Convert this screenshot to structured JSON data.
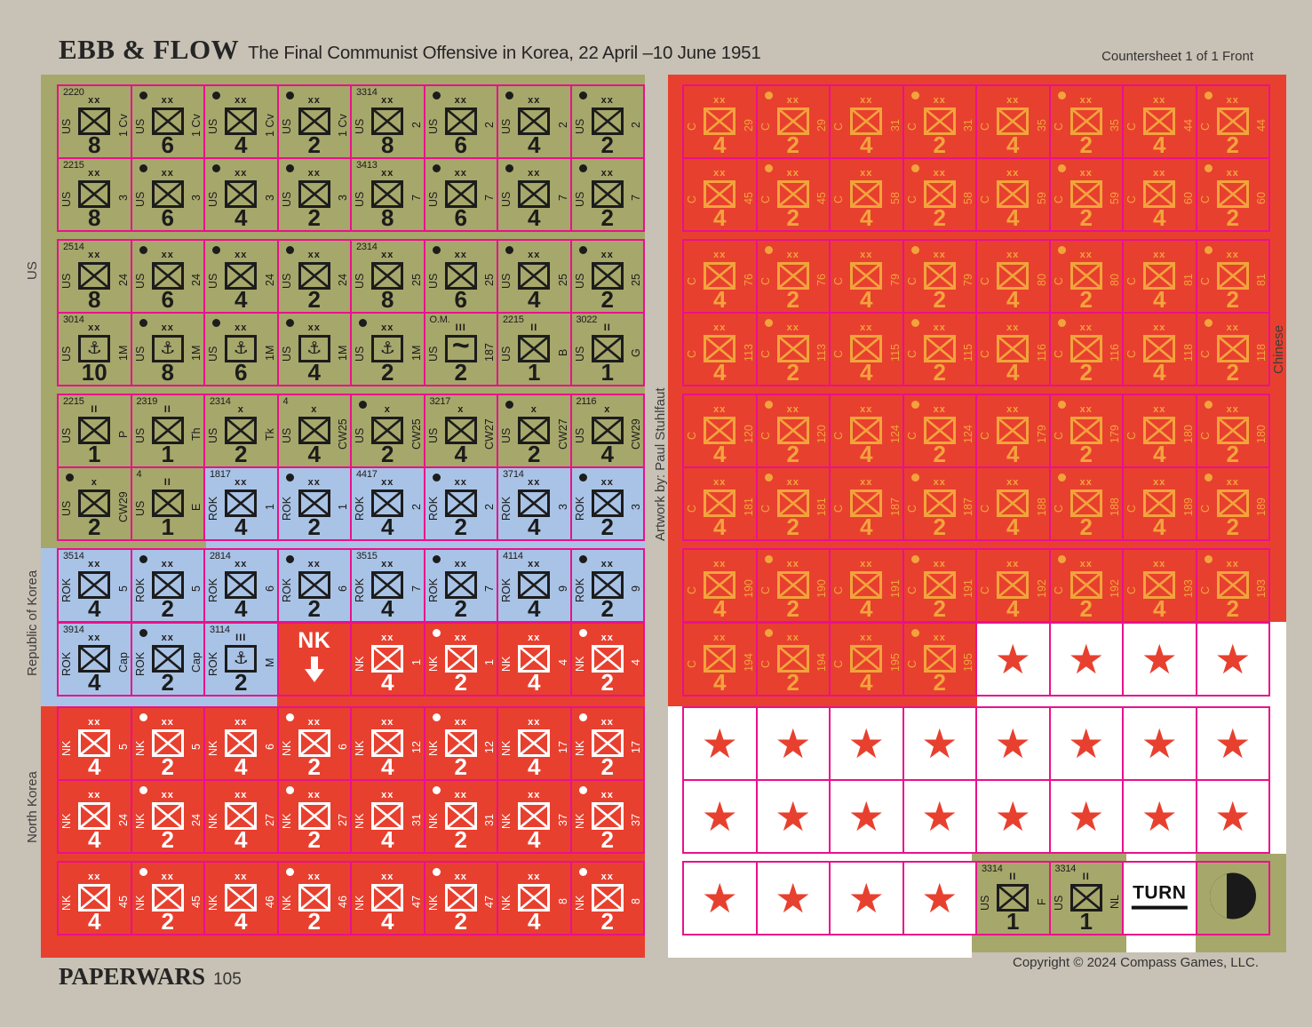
{
  "header": {
    "title": "EBB & FLOW",
    "subtitle": "The Final Communist Offensive in Korea, 22 April –10 June 1951",
    "sheet_label": "Countersheet 1 of 1 Front"
  },
  "footer": {
    "magazine": "PAPERWARS",
    "issue": "105",
    "copyright": "Copyright © 2024 Compass Games, LLC."
  },
  "side_labels": {
    "left_top": "US",
    "left_mid": "Republic of Korea",
    "left_bottom": "North Korea",
    "center": "Artwork by: Paul Stuhlfaut",
    "right": "Chinese"
  },
  "colors": {
    "page_bg": "#c8c1b5",
    "olive": "#a6a76b",
    "blue": "#a9c3e6",
    "red": "#e8402f",
    "white": "#ffffff",
    "magenta_border": "#e9118c",
    "orange_ink": "#f2a43c",
    "dark_ink": "#1c1c1c"
  },
  "army_labels": {
    "us": "US",
    "rok": "ROK",
    "nk": "NK",
    "cn": "C"
  },
  "defaults": {
    "size_symbol": "xx",
    "unit_symbol": "inf"
  },
  "icons": {
    "anchor": "⚓",
    "airborne": "~",
    "star": "★",
    "nk_arrow_label": "NK"
  },
  "panels": {
    "left": {
      "rows": [
        [
          {
            "k": "us",
            "id": "2220",
            "s": "8",
            "d": "1 Cv"
          },
          {
            "k": "us",
            "dot": 1,
            "s": "6",
            "d": "1 Cv"
          },
          {
            "k": "us",
            "dot": 1,
            "s": "4",
            "d": "1 Cv"
          },
          {
            "k": "us",
            "dot": 1,
            "s": "2",
            "d": "1 Cv"
          },
          {
            "k": "us",
            "id": "3314",
            "s": "8",
            "d": "2"
          },
          {
            "k": "us",
            "dot": 1,
            "s": "6",
            "d": "2"
          },
          {
            "k": "us",
            "dot": 1,
            "s": "4",
            "d": "2"
          },
          {
            "k": "us",
            "dot": 1,
            "s": "2",
            "d": "2"
          }
        ],
        [
          {
            "k": "us",
            "id": "2215",
            "s": "8",
            "d": "3"
          },
          {
            "k": "us",
            "dot": 1,
            "s": "6",
            "d": "3"
          },
          {
            "k": "us",
            "dot": 1,
            "s": "4",
            "d": "3"
          },
          {
            "k": "us",
            "dot": 1,
            "s": "2",
            "d": "3"
          },
          {
            "k": "us",
            "id": "3413",
            "s": "8",
            "d": "7"
          },
          {
            "k": "us",
            "dot": 1,
            "s": "6",
            "d": "7"
          },
          {
            "k": "us",
            "dot": 1,
            "s": "4",
            "d": "7"
          },
          {
            "k": "us",
            "dot": 1,
            "s": "2",
            "d": "7"
          }
        ],
        [
          {
            "k": "us",
            "id": "2514",
            "s": "8",
            "d": "24"
          },
          {
            "k": "us",
            "dot": 1,
            "s": "6",
            "d": "24"
          },
          {
            "k": "us",
            "dot": 1,
            "s": "4",
            "d": "24"
          },
          {
            "k": "us",
            "dot": 1,
            "s": "2",
            "d": "24"
          },
          {
            "k": "us",
            "id": "2314",
            "s": "8",
            "d": "25"
          },
          {
            "k": "us",
            "dot": 1,
            "s": "6",
            "d": "25"
          },
          {
            "k": "us",
            "dot": 1,
            "s": "4",
            "d": "25"
          },
          {
            "k": "us",
            "dot": 1,
            "s": "2",
            "d": "25"
          }
        ],
        [
          {
            "k": "us",
            "id": "3014",
            "sym": "anchor",
            "s": "10",
            "d": "1M"
          },
          {
            "k": "us",
            "dot": 1,
            "sym": "anchor",
            "s": "8",
            "d": "1M"
          },
          {
            "k": "us",
            "dot": 1,
            "sym": "anchor",
            "s": "6",
            "d": "1M"
          },
          {
            "k": "us",
            "dot": 1,
            "sym": "anchor",
            "s": "4",
            "d": "1M"
          },
          {
            "k": "us",
            "dot": 1,
            "sym": "anchor",
            "s": "2",
            "d": "1M"
          },
          {
            "k": "us",
            "id": "O.M.",
            "sz": "III",
            "sym": "abn",
            "s": "2",
            "d": "187"
          },
          {
            "k": "us",
            "id": "2215",
            "sz": "II",
            "s": "1",
            "d": "B"
          },
          {
            "k": "us",
            "id": "3022",
            "sz": "II",
            "s": "1",
            "d": "G"
          }
        ],
        [
          {
            "k": "us",
            "id": "2215",
            "sz": "II",
            "s": "1",
            "d": "P"
          },
          {
            "k": "us",
            "id": "2319",
            "sz": "II",
            "s": "1",
            "d": "Th"
          },
          {
            "k": "us",
            "id": "2314",
            "sz": "x",
            "s": "2",
            "d": "Tk"
          },
          {
            "k": "us",
            "id": "4",
            "sz": "x",
            "s": "4",
            "d": "CW25"
          },
          {
            "k": "us",
            "dot": 1,
            "sz": "x",
            "s": "2",
            "d": "CW25"
          },
          {
            "k": "us",
            "id": "3217",
            "sz": "x",
            "s": "4",
            "d": "CW27"
          },
          {
            "k": "us",
            "dot": 1,
            "sz": "x",
            "s": "2",
            "d": "CW27"
          },
          {
            "k": "us",
            "id": "2116",
            "sz": "x",
            "s": "4",
            "d": "CW29"
          }
        ],
        [
          {
            "k": "us",
            "dot": 1,
            "sz": "x",
            "s": "2",
            "d": "CW29"
          },
          {
            "k": "us",
            "id": "4",
            "sz": "II",
            "s": "1",
            "d": "E"
          },
          {
            "k": "rok",
            "id": "1817",
            "s": "4",
            "d": "1"
          },
          {
            "k": "rok",
            "dot": 1,
            "s": "2",
            "d": "1"
          },
          {
            "k": "rok",
            "id": "4417",
            "s": "4",
            "d": "2"
          },
          {
            "k": "rok",
            "dot": 1,
            "s": "2",
            "d": "2"
          },
          {
            "k": "rok",
            "id": "3714",
            "s": "4",
            "d": "3"
          },
          {
            "k": "rok",
            "dot": 1,
            "s": "2",
            "d": "3"
          }
        ],
        [
          {
            "k": "rok",
            "id": "3514",
            "s": "4",
            "d": "5"
          },
          {
            "k": "rok",
            "dot": 1,
            "s": "2",
            "d": "5"
          },
          {
            "k": "rok",
            "id": "2814",
            "s": "4",
            "d": "6"
          },
          {
            "k": "rok",
            "dot": 1,
            "s": "2",
            "d": "6"
          },
          {
            "k": "rok",
            "id": "3515",
            "s": "4",
            "d": "7"
          },
          {
            "k": "rok",
            "dot": 1,
            "s": "2",
            "d": "7"
          },
          {
            "k": "rok",
            "id": "4114",
            "s": "4",
            "d": "9"
          },
          {
            "k": "rok",
            "dot": 1,
            "s": "2",
            "d": "9"
          }
        ],
        [
          {
            "k": "rok",
            "id": "3914",
            "s": "4",
            "d": "Cap"
          },
          {
            "k": "rok",
            "dot": 1,
            "s": "2",
            "d": "Cap"
          },
          {
            "k": "rok",
            "id": "3114",
            "sz": "III",
            "sym": "anchor",
            "s": "2",
            "d": "M"
          },
          {
            "k": "nk-arrow"
          },
          {
            "k": "nk",
            "s": "4",
            "d": "1"
          },
          {
            "k": "nk",
            "dot": 1,
            "s": "2",
            "d": "1"
          },
          {
            "k": "nk",
            "s": "4",
            "d": "4"
          },
          {
            "k": "nk",
            "dot": 1,
            "s": "2",
            "d": "4"
          }
        ],
        [
          {
            "k": "nk",
            "s": "4",
            "d": "5"
          },
          {
            "k": "nk",
            "dot": 1,
            "s": "2",
            "d": "5"
          },
          {
            "k": "nk",
            "s": "4",
            "d": "6"
          },
          {
            "k": "nk",
            "dot": 1,
            "s": "2",
            "d": "6"
          },
          {
            "k": "nk",
            "s": "4",
            "d": "12"
          },
          {
            "k": "nk",
            "dot": 1,
            "s": "2",
            "d": "12"
          },
          {
            "k": "nk",
            "s": "4",
            "d": "17"
          },
          {
            "k": "nk",
            "dot": 1,
            "s": "2",
            "d": "17"
          }
        ],
        [
          {
            "k": "nk",
            "s": "4",
            "d": "24"
          },
          {
            "k": "nk",
            "dot": 1,
            "s": "2",
            "d": "24"
          },
          {
            "k": "nk",
            "s": "4",
            "d": "27"
          },
          {
            "k": "nk",
            "dot": 1,
            "s": "2",
            "d": "27"
          },
          {
            "k": "nk",
            "s": "4",
            "d": "31"
          },
          {
            "k": "nk",
            "dot": 1,
            "s": "2",
            "d": "31"
          },
          {
            "k": "nk",
            "s": "4",
            "d": "37"
          },
          {
            "k": "nk",
            "dot": 1,
            "s": "2",
            "d": "37"
          }
        ],
        [
          {
            "k": "nk",
            "s": "4",
            "d": "45"
          },
          {
            "k": "nk",
            "dot": 1,
            "s": "2",
            "d": "45"
          },
          {
            "k": "nk",
            "s": "4",
            "d": "46"
          },
          {
            "k": "nk",
            "dot": 1,
            "s": "2",
            "d": "46"
          },
          {
            "k": "nk",
            "s": "4",
            "d": "47"
          },
          {
            "k": "nk",
            "dot": 1,
            "s": "2",
            "d": "47"
          },
          {
            "k": "nk",
            "s": "4",
            "d": "8"
          },
          {
            "k": "nk",
            "dot": 1,
            "s": "2",
            "d": "8"
          }
        ]
      ]
    },
    "right": {
      "rows": [
        [
          {
            "k": "cn",
            "s": "4",
            "d": "29"
          },
          {
            "k": "cn",
            "dot": 1,
            "s": "2",
            "d": "29"
          },
          {
            "k": "cn",
            "s": "4",
            "d": "31"
          },
          {
            "k": "cn",
            "dot": 1,
            "s": "2",
            "d": "31"
          },
          {
            "k": "cn",
            "s": "4",
            "d": "35"
          },
          {
            "k": "cn",
            "dot": 1,
            "s": "2",
            "d": "35"
          },
          {
            "k": "cn",
            "s": "4",
            "d": "44"
          },
          {
            "k": "cn",
            "dot": 1,
            "s": "2",
            "d": "44"
          }
        ],
        [
          {
            "k": "cn",
            "s": "4",
            "d": "45"
          },
          {
            "k": "cn",
            "dot": 1,
            "s": "2",
            "d": "45"
          },
          {
            "k": "cn",
            "s": "4",
            "d": "58"
          },
          {
            "k": "cn",
            "dot": 1,
            "s": "2",
            "d": "58"
          },
          {
            "k": "cn",
            "s": "4",
            "d": "59"
          },
          {
            "k": "cn",
            "dot": 1,
            "s": "2",
            "d": "59"
          },
          {
            "k": "cn",
            "s": "4",
            "d": "60"
          },
          {
            "k": "cn",
            "dot": 1,
            "s": "2",
            "d": "60"
          }
        ],
        [
          {
            "k": "cn",
            "s": "4",
            "d": "76"
          },
          {
            "k": "cn",
            "dot": 1,
            "s": "2",
            "d": "76"
          },
          {
            "k": "cn",
            "s": "4",
            "d": "79"
          },
          {
            "k": "cn",
            "dot": 1,
            "s": "2",
            "d": "79"
          },
          {
            "k": "cn",
            "s": "4",
            "d": "80"
          },
          {
            "k": "cn",
            "dot": 1,
            "s": "2",
            "d": "80"
          },
          {
            "k": "cn",
            "s": "4",
            "d": "81"
          },
          {
            "k": "cn",
            "dot": 1,
            "s": "2",
            "d": "81"
          }
        ],
        [
          {
            "k": "cn",
            "s": "4",
            "d": "113"
          },
          {
            "k": "cn",
            "dot": 1,
            "s": "2",
            "d": "113"
          },
          {
            "k": "cn",
            "s": "4",
            "d": "115"
          },
          {
            "k": "cn",
            "dot": 1,
            "s": "2",
            "d": "115"
          },
          {
            "k": "cn",
            "s": "4",
            "d": "116"
          },
          {
            "k": "cn",
            "dot": 1,
            "s": "2",
            "d": "116"
          },
          {
            "k": "cn",
            "s": "4",
            "d": "118"
          },
          {
            "k": "cn",
            "dot": 1,
            "s": "2",
            "d": "118"
          }
        ],
        [
          {
            "k": "cn",
            "s": "4",
            "d": "120"
          },
          {
            "k": "cn",
            "dot": 1,
            "s": "2",
            "d": "120"
          },
          {
            "k": "cn",
            "s": "4",
            "d": "124"
          },
          {
            "k": "cn",
            "dot": 1,
            "s": "2",
            "d": "124"
          },
          {
            "k": "cn",
            "s": "4",
            "d": "179"
          },
          {
            "k": "cn",
            "dot": 1,
            "s": "2",
            "d": "179"
          },
          {
            "k": "cn",
            "s": "4",
            "d": "180"
          },
          {
            "k": "cn",
            "dot": 1,
            "s": "2",
            "d": "180"
          }
        ],
        [
          {
            "k": "cn",
            "s": "4",
            "d": "181"
          },
          {
            "k": "cn",
            "dot": 1,
            "s": "2",
            "d": "181"
          },
          {
            "k": "cn",
            "s": "4",
            "d": "187"
          },
          {
            "k": "cn",
            "dot": 1,
            "s": "2",
            "d": "187"
          },
          {
            "k": "cn",
            "s": "4",
            "d": "188"
          },
          {
            "k": "cn",
            "dot": 1,
            "s": "2",
            "d": "188"
          },
          {
            "k": "cn",
            "s": "4",
            "d": "189"
          },
          {
            "k": "cn",
            "dot": 1,
            "s": "2",
            "d": "189"
          }
        ],
        [
          {
            "k": "cn",
            "s": "4",
            "d": "190"
          },
          {
            "k": "cn",
            "dot": 1,
            "s": "2",
            "d": "190"
          },
          {
            "k": "cn",
            "s": "4",
            "d": "191"
          },
          {
            "k": "cn",
            "dot": 1,
            "s": "2",
            "d": "191"
          },
          {
            "k": "cn",
            "s": "4",
            "d": "192"
          },
          {
            "k": "cn",
            "dot": 1,
            "s": "2",
            "d": "192"
          },
          {
            "k": "cn",
            "s": "4",
            "d": "193"
          },
          {
            "k": "cn",
            "dot": 1,
            "s": "2",
            "d": "193"
          }
        ],
        [
          {
            "k": "cn",
            "s": "4",
            "d": "194"
          },
          {
            "k": "cn",
            "dot": 1,
            "s": "2",
            "d": "194"
          },
          {
            "k": "cn",
            "s": "4",
            "d": "195"
          },
          {
            "k": "cn",
            "dot": 1,
            "s": "2",
            "d": "195"
          },
          {
            "k": "star"
          },
          {
            "k": "star"
          },
          {
            "k": "star"
          },
          {
            "k": "star"
          }
        ],
        [
          {
            "k": "star"
          },
          {
            "k": "star"
          },
          {
            "k": "star"
          },
          {
            "k": "star"
          },
          {
            "k": "star"
          },
          {
            "k": "star"
          },
          {
            "k": "star"
          },
          {
            "k": "star"
          }
        ],
        [
          {
            "k": "star"
          },
          {
            "k": "star"
          },
          {
            "k": "star"
          },
          {
            "k": "star"
          },
          {
            "k": "star"
          },
          {
            "k": "star"
          },
          {
            "k": "star"
          },
          {
            "k": "star"
          }
        ],
        [
          {
            "k": "star"
          },
          {
            "k": "star"
          },
          {
            "k": "star"
          },
          {
            "k": "star"
          },
          {
            "k": "us",
            "id": "3314",
            "sz": "II",
            "s": "1",
            "d": "F"
          },
          {
            "k": "us",
            "id": "3314",
            "sz": "II",
            "s": "1",
            "d": "NL"
          },
          {
            "k": "turn",
            "label": "TURN"
          },
          {
            "k": "day-night"
          }
        ]
      ]
    }
  }
}
